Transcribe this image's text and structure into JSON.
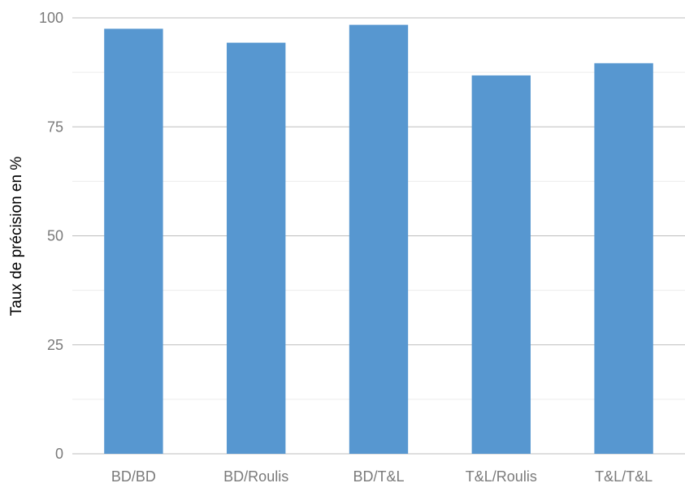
{
  "chart_data": {
    "type": "bar",
    "categories": [
      "BD/BD",
      "BD/Roulis",
      "BD/T&L",
      "T&L/Roulis",
      "T&L/T&L"
    ],
    "values": [
      97.5,
      94.3,
      98.4,
      86.8,
      89.6
    ],
    "ylabel": "Taux de précision en %",
    "ylim": [
      0,
      100
    ],
    "yticks": [
      0,
      25,
      50,
      75,
      100
    ],
    "grid": true,
    "bar_color": "#5797d0"
  }
}
